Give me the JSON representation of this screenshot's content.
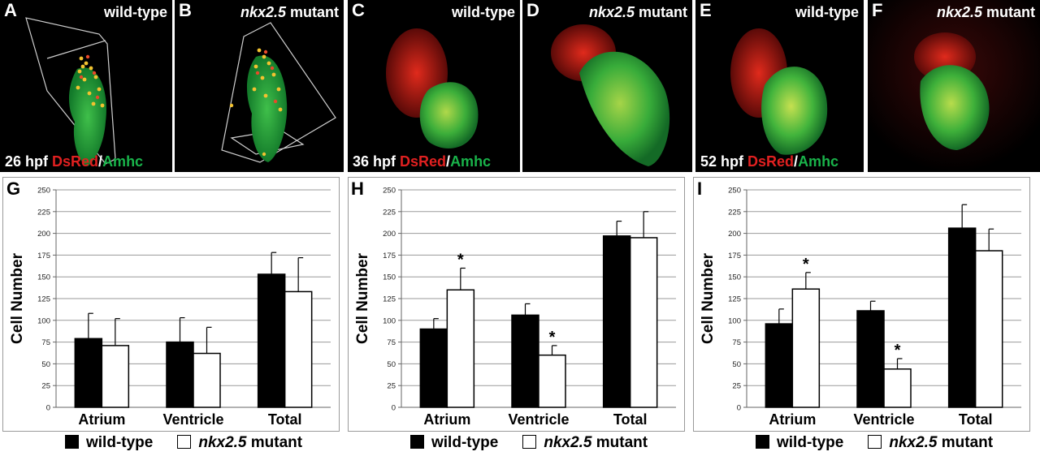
{
  "colors": {
    "wildtype_bar": "#000000",
    "mutant_bar": "#ffffff",
    "dsred": "#e02020",
    "amhc": "#19b34a"
  },
  "panels": [
    {
      "letter": "A",
      "genotype_italic": "",
      "genotype_rest": "wild-type",
      "stage": "26 hpf",
      "dsred": "DsRed",
      "slash": "/",
      "amhc": "Amhc"
    },
    {
      "letter": "B",
      "genotype_italic": "nkx2.5",
      "genotype_rest": " mutant",
      "stage": "",
      "dsred": "",
      "slash": "",
      "amhc": ""
    },
    {
      "letter": "C",
      "genotype_italic": "",
      "genotype_rest": "wild-type",
      "stage": "36 hpf",
      "dsred": "DsRed",
      "slash": "/",
      "amhc": "Amhc"
    },
    {
      "letter": "D",
      "genotype_italic": "nkx2.5",
      "genotype_rest": " mutant",
      "stage": "",
      "dsred": "",
      "slash": "",
      "amhc": ""
    },
    {
      "letter": "E",
      "genotype_italic": "",
      "genotype_rest": "wild-type",
      "stage": "52 hpf",
      "dsred": "DsRed",
      "slash": "/",
      "amhc": "Amhc"
    },
    {
      "letter": "F",
      "genotype_italic": "nkx2.5",
      "genotype_rest": " mutant",
      "stage": "",
      "dsred": "",
      "slash": "",
      "amhc": ""
    }
  ],
  "legend": {
    "wildtype": "wild-type",
    "mutant_italic": "nkx2.5",
    "mutant_rest": " mutant"
  },
  "chart_data": [
    {
      "panel": "G",
      "type": "bar",
      "categories": [
        "Atrium",
        "Ventricle",
        "Total"
      ],
      "ylabel": "Cell Number",
      "ylim": [
        0,
        250
      ],
      "yticks": [
        0,
        25,
        50,
        75,
        100,
        125,
        150,
        175,
        200,
        225,
        250
      ],
      "grid": true,
      "series": [
        {
          "name": "wild-type",
          "values": [
            79,
            75,
            153
          ],
          "errors": [
            29,
            28,
            25
          ],
          "significant": [
            false,
            false,
            false
          ]
        },
        {
          "name": "nkx2.5 mutant",
          "values": [
            71,
            62,
            133
          ],
          "errors": [
            31,
            30,
            39
          ],
          "significant": [
            false,
            false,
            false
          ]
        }
      ],
      "significance_marker": "*"
    },
    {
      "panel": "H",
      "type": "bar",
      "categories": [
        "Atrium",
        "Ventricle",
        "Total"
      ],
      "ylabel": "Cell Number",
      "ylim": [
        0,
        250
      ],
      "yticks": [
        0,
        25,
        50,
        75,
        100,
        125,
        150,
        175,
        200,
        225,
        250
      ],
      "grid": true,
      "series": [
        {
          "name": "wild-type",
          "values": [
            90,
            106,
            197
          ],
          "errors": [
            12,
            13,
            17
          ],
          "significant": [
            false,
            false,
            false
          ]
        },
        {
          "name": "nkx2.5 mutant",
          "values": [
            135,
            60,
            195
          ],
          "errors": [
            25,
            11,
            30
          ],
          "significant": [
            true,
            true,
            false
          ]
        }
      ],
      "significance_marker": "*"
    },
    {
      "panel": "I",
      "type": "bar",
      "categories": [
        "Atrium",
        "Ventricle",
        "Total"
      ],
      "ylabel": "Cell Number",
      "ylim": [
        0,
        250
      ],
      "yticks": [
        0,
        25,
        50,
        75,
        100,
        125,
        150,
        175,
        200,
        225,
        250
      ],
      "grid": true,
      "series": [
        {
          "name": "wild-type",
          "values": [
            96,
            111,
            206
          ],
          "errors": [
            17,
            11,
            27
          ],
          "significant": [
            false,
            false,
            false
          ]
        },
        {
          "name": "nkx2.5 mutant",
          "values": [
            136,
            44,
            180
          ],
          "errors": [
            19,
            12,
            25
          ],
          "significant": [
            true,
            true,
            false
          ]
        }
      ],
      "significance_marker": "*"
    }
  ]
}
